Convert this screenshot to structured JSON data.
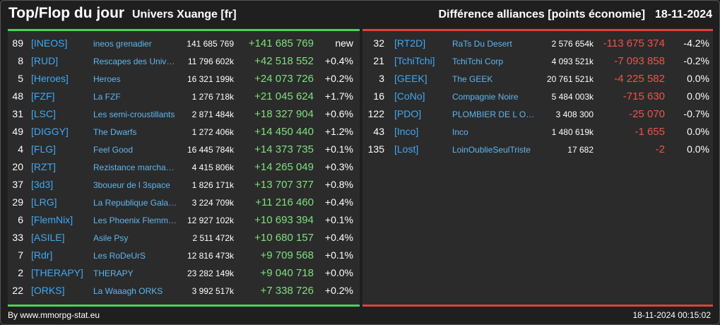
{
  "header": {
    "title": "Top/Flop du jour",
    "universe": "Univers Xuange [fr]",
    "ranking": "Différence alliances [points économie]",
    "date": "18-11-2024"
  },
  "top": [
    {
      "rank": "89",
      "tag": "[INEOS]",
      "name": "ineos grenadier",
      "points": "141 685 769",
      "diff": "+141 685 769",
      "pct": "new"
    },
    {
      "rank": "8",
      "tag": "[RUD]",
      "name": "Rescapes des Univers Detruits",
      "points": "11 796 602k",
      "diff": "+42 518 552",
      "pct": "+0.4%"
    },
    {
      "rank": "5",
      "tag": "[Heroes]",
      "name": "Heroes",
      "points": "16 321 199k",
      "diff": "+24 073 726",
      "pct": "+0.2%"
    },
    {
      "rank": "48",
      "tag": "[FZF]",
      "name": "La FZF",
      "points": "1 276 718k",
      "diff": "+21 045 624",
      "pct": "+1.7%"
    },
    {
      "rank": "31",
      "tag": "[LSC]",
      "name": "Les semi-croustillants",
      "points": "2 871 484k",
      "diff": "+18 327 904",
      "pct": "+0.6%"
    },
    {
      "rank": "49",
      "tag": "[DIGGY]",
      "name": "The Dwarfs",
      "points": "1 272 406k",
      "diff": "+14 450 440",
      "pct": "+1.2%"
    },
    {
      "rank": "4",
      "tag": "[FLG]",
      "name": "Feel Good",
      "points": "16 445 784k",
      "diff": "+14 373 735",
      "pct": "+0.1%"
    },
    {
      "rank": "20",
      "tag": "[RZT]",
      "name": "Rezistance marchande",
      "points": "4 415 806k",
      "diff": "+14 265 049",
      "pct": "+0.3%"
    },
    {
      "rank": "37",
      "tag": "[3d3]",
      "name": "3boueur de l 3space",
      "points": "1 826 171k",
      "diff": "+13 707 377",
      "pct": "+0.8%"
    },
    {
      "rank": "29",
      "tag": "[LRG]",
      "name": "La Republique Galactique",
      "points": "3 224 709k",
      "diff": "+11 216 460",
      "pct": "+0.4%"
    },
    {
      "rank": "6",
      "tag": "[FlemNix]",
      "name": "Les Phoenix Flemmards",
      "points": "12 927 102k",
      "diff": "+10 693 394",
      "pct": "+0.1%"
    },
    {
      "rank": "33",
      "tag": "[ASILE]",
      "name": "Asile Psy",
      "points": "2 511 472k",
      "diff": "+10 680 157",
      "pct": "+0.4%"
    },
    {
      "rank": "7",
      "tag": "[Rdr]",
      "name": "Les RoDeUrS",
      "points": "12 816 473k",
      "diff": "+9 709 568",
      "pct": "+0.1%"
    },
    {
      "rank": "2",
      "tag": "[THERAPY]",
      "name": "THERAPY",
      "points": "23 282 149k",
      "diff": "+9 040 718",
      "pct": "+0.0%"
    },
    {
      "rank": "22",
      "tag": "[ORKS]",
      "name": "La Waaagh ORKS",
      "points": "3 992 517k",
      "diff": "+7 338 726",
      "pct": "+0.2%"
    }
  ],
  "flop": [
    {
      "rank": "32",
      "tag": "[RT2D]",
      "name": "RaTs Du Desert",
      "points": "2 576 654k",
      "diff": "-113 675 374",
      "pct": "-4.2%"
    },
    {
      "rank": "21",
      "tag": "[TchiTchi]",
      "name": "TchiTchi Corp",
      "points": "4 093 521k",
      "diff": "-7 093 858",
      "pct": "-0.2%"
    },
    {
      "rank": "3",
      "tag": "[GEEK]",
      "name": "The GEEK",
      "points": "20 761 521k",
      "diff": "-4 225 582",
      "pct": "0.0%"
    },
    {
      "rank": "16",
      "tag": "[CoNo]",
      "name": "Compagnie Noire",
      "points": "5 484 003k",
      "diff": "-715 630",
      "pct": "0.0%"
    },
    {
      "rank": "122",
      "tag": "[PDO]",
      "name": "PLOMBIER DE L OUEST",
      "points": "3 408 300",
      "diff": "-25 070",
      "pct": "-0.7%"
    },
    {
      "rank": "43",
      "tag": "[Inco]",
      "name": "Inco",
      "points": "1 480 619k",
      "diff": "-1 655",
      "pct": "0.0%"
    },
    {
      "rank": "135",
      "tag": "[Lost]",
      "name": "LoinOublieSeulTriste",
      "points": "17 682",
      "diff": "-2",
      "pct": "0.0%"
    }
  ],
  "footer": {
    "credit": "By www.mmorpg-stat.eu",
    "timestamp": "18-11-2024 00:15:02"
  },
  "colors": {
    "top_accent": "#4cd15a",
    "flop_accent": "#d9443e",
    "positive": "#7fe07f",
    "negative": "#f0524a",
    "tag": "#3fa9f5"
  }
}
